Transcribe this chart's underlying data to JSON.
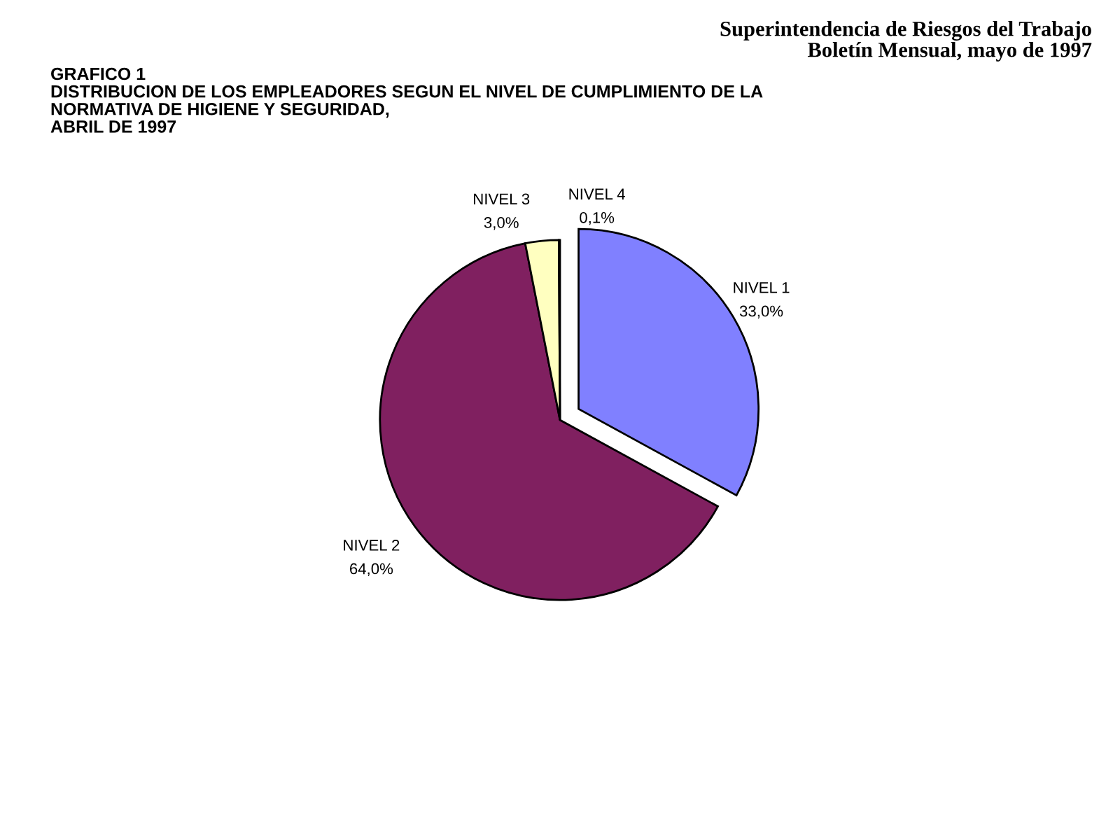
{
  "chart_data": {
    "type": "pie",
    "title": "GRAFICO 1\nDISTRIBUCION DE LOS EMPLEADORES SEGUN EL NIVEL DE CUMPLIMIENTO DE LA\nNORMATIVA DE HIGIENE Y SEGURIDAD,\nABRIL DE 1997",
    "annotations": [
      "Superintendencia de Riesgos del Trabajo",
      "Boletín Mensual, mayo de 1997"
    ],
    "categories": [
      "NIVEL 1",
      "NIVEL 2",
      "NIVEL 3",
      "NIVEL 4"
    ],
    "values": [
      33.0,
      64.0,
      3.0,
      0.1
    ],
    "value_labels": [
      "33,0%",
      "64,0%",
      "3,0%",
      "0,1%"
    ],
    "colors": [
      "#8080ff",
      "#802060",
      "#ffffc0",
      "#a0e0e0"
    ]
  }
}
